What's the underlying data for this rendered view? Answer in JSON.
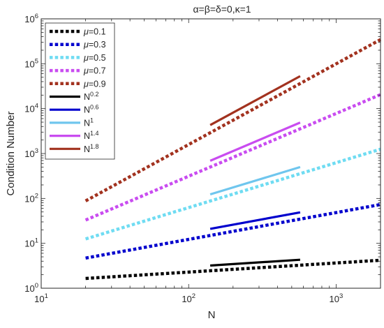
{
  "chart_data": {
    "type": "line",
    "title": "α=β=δ=0,κ=1",
    "xlabel": "N",
    "ylabel": "Condition Number",
    "xscale": "log",
    "yscale": "log",
    "xlim": [
      10,
      2000
    ],
    "ylim": [
      1,
      1000000
    ],
    "xticks": [
      10,
      100,
      1000
    ],
    "yticks": [
      1,
      10,
      100,
      1000,
      10000,
      100000,
      1000000
    ],
    "xtick_labels": [
      {
        "base": "10",
        "exp": "1"
      },
      {
        "base": "10",
        "exp": "2"
      },
      {
        "base": "10",
        "exp": "3"
      }
    ],
    "ytick_labels": [
      {
        "base": "10",
        "exp": "0"
      },
      {
        "base": "10",
        "exp": "1"
      },
      {
        "base": "10",
        "exp": "2"
      },
      {
        "base": "10",
        "exp": "3"
      },
      {
        "base": "10",
        "exp": "4"
      },
      {
        "base": "10",
        "exp": "5"
      },
      {
        "base": "10",
        "exp": "6"
      }
    ],
    "grid": false,
    "legend_position": "top-left",
    "series": [
      {
        "name": "μ=0.1",
        "legend": {
          "prefix": "μ",
          "text": "=0.1"
        },
        "style": "dotted",
        "color": "#000000",
        "x": [
          20,
          2000
        ],
        "y": [
          1.65,
          4.2
        ]
      },
      {
        "name": "μ=0.3",
        "legend": {
          "prefix": "μ",
          "text": "=0.3"
        },
        "style": "dotted",
        "color": "#0000cd",
        "x": [
          20,
          2000
        ],
        "y": [
          4.7,
          73
        ]
      },
      {
        "name": "μ=0.5",
        "legend": {
          "prefix": "μ",
          "text": "=0.5"
        },
        "style": "dotted",
        "color": "#6fdcf2",
        "x": [
          20,
          2000
        ],
        "y": [
          12.5,
          1250
        ]
      },
      {
        "name": "μ=0.7",
        "legend": {
          "prefix": "μ",
          "text": "=0.7"
        },
        "style": "dotted",
        "color": "#c94cf0",
        "x": [
          20,
          2000
        ],
        "y": [
          33,
          20500
        ]
      },
      {
        "name": "μ=0.9",
        "legend": {
          "prefix": "μ",
          "text": "=0.9"
        },
        "style": "dotted",
        "color": "#a2321f",
        "x": [
          20,
          2000
        ],
        "y": [
          88,
          345000
        ]
      },
      {
        "name": "N^0.2",
        "legend": {
          "prefix": "N",
          "exp": "0.2"
        },
        "style": "solid",
        "color": "#000000",
        "x": [
          140,
          570
        ],
        "y": [
          3.2,
          4.3
        ]
      },
      {
        "name": "N^0.6",
        "legend": {
          "prefix": "N",
          "exp": "0.6"
        },
        "style": "solid",
        "color": "#0000cd",
        "x": [
          140,
          570
        ],
        "y": [
          21,
          49
        ]
      },
      {
        "name": "N^1",
        "legend": {
          "prefix": "N",
          "exp": "1"
        },
        "style": "solid",
        "color": "#6fc6ee",
        "x": [
          140,
          570
        ],
        "y": [
          123,
          500
        ]
      },
      {
        "name": "N^1.4",
        "legend": {
          "prefix": "N",
          "exp": "1.4"
        },
        "style": "solid",
        "color": "#c94cf0",
        "x": [
          140,
          570
        ],
        "y": [
          690,
          4900
        ]
      },
      {
        "name": "N^1.8",
        "legend": {
          "prefix": "N",
          "exp": "1.8"
        },
        "style": "solid",
        "color": "#a2321f",
        "x": [
          140,
          570
        ],
        "y": [
          4300,
          53000
        ]
      }
    ]
  }
}
